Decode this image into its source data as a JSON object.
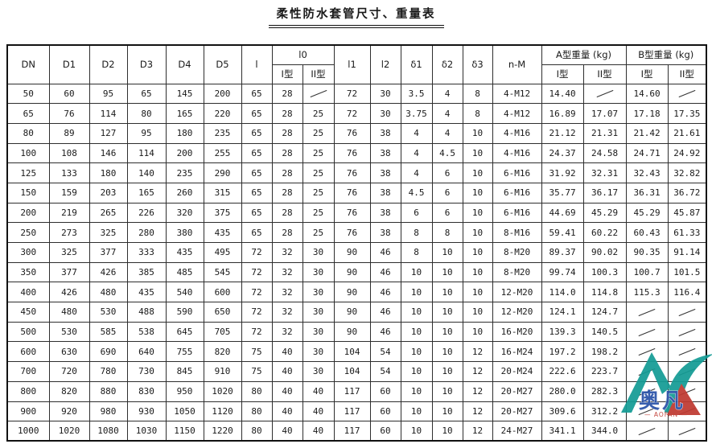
{
  "title": "柔性防水套管尺寸、重量表",
  "watermark": {
    "cn": "奥凡",
    "en": "— AOFAN —",
    "teal": "#149c95",
    "red": "#bf3a31",
    "blue": "#2a52a8"
  },
  "table": {
    "header": {
      "dn": "DN",
      "d1": "D1",
      "d2": "D2",
      "d3": "D3",
      "d4": "D4",
      "d5": "D5",
      "l": "l",
      "l0": "l0",
      "l1": "l1",
      "l2": "l2",
      "delta1": "δ1",
      "delta2": "δ2",
      "delta3": "δ3",
      "nm": "n-M",
      "weight_a": "A型重量 (kg)",
      "weight_b": "B型重量 (kg)",
      "type_i": "I型",
      "type_ii": "II型"
    },
    "rows": [
      [
        "50",
        "60",
        "95",
        "65",
        "145",
        "200",
        "65",
        "28",
        "/",
        "72",
        "30",
        "3.5",
        "4",
        "8",
        "4-M12",
        "14.40",
        "/",
        "14.60",
        "/"
      ],
      [
        "65",
        "76",
        "114",
        "80",
        "165",
        "220",
        "65",
        "28",
        "25",
        "72",
        "30",
        "3.75",
        "4",
        "8",
        "4-M12",
        "16.89",
        "17.07",
        "17.18",
        "17.35"
      ],
      [
        "80",
        "89",
        "127",
        "95",
        "180",
        "235",
        "65",
        "28",
        "25",
        "76",
        "38",
        "4",
        "4",
        "10",
        "4-M16",
        "21.12",
        "21.31",
        "21.42",
        "21.61"
      ],
      [
        "100",
        "108",
        "146",
        "114",
        "200",
        "255",
        "65",
        "28",
        "25",
        "76",
        "38",
        "4",
        "4.5",
        "10",
        "4-M16",
        "24.37",
        "24.58",
        "24.71",
        "24.92"
      ],
      [
        "125",
        "133",
        "180",
        "140",
        "235",
        "290",
        "65",
        "28",
        "25",
        "76",
        "38",
        "4",
        "6",
        "10",
        "6-M16",
        "31.92",
        "32.31",
        "32.43",
        "32.82"
      ],
      [
        "150",
        "159",
        "203",
        "165",
        "260",
        "315",
        "65",
        "28",
        "25",
        "76",
        "38",
        "4.5",
        "6",
        "10",
        "6-M16",
        "35.77",
        "36.17",
        "36.31",
        "36.72"
      ],
      [
        "200",
        "219",
        "265",
        "226",
        "320",
        "375",
        "65",
        "28",
        "25",
        "76",
        "38",
        "6",
        "6",
        "10",
        "6-M16",
        "44.69",
        "45.29",
        "45.29",
        "45.87"
      ],
      [
        "250",
        "273",
        "325",
        "280",
        "380",
        "435",
        "65",
        "28",
        "25",
        "76",
        "38",
        "8",
        "8",
        "10",
        "8-M16",
        "59.41",
        "60.22",
        "60.43",
        "61.33"
      ],
      [
        "300",
        "325",
        "377",
        "333",
        "435",
        "495",
        "72",
        "32",
        "30",
        "90",
        "46",
        "8",
        "10",
        "10",
        "8-M20",
        "89.37",
        "90.02",
        "90.35",
        "91.14"
      ],
      [
        "350",
        "377",
        "426",
        "385",
        "485",
        "545",
        "72",
        "32",
        "30",
        "90",
        "46",
        "10",
        "10",
        "10",
        "8-M20",
        "99.74",
        "100.3",
        "100.7",
        "101.5"
      ],
      [
        "400",
        "426",
        "480",
        "435",
        "540",
        "600",
        "72",
        "32",
        "30",
        "90",
        "46",
        "10",
        "10",
        "10",
        "12-M20",
        "114.0",
        "114.8",
        "115.3",
        "116.4"
      ],
      [
        "450",
        "480",
        "530",
        "488",
        "590",
        "650",
        "72",
        "32",
        "30",
        "90",
        "46",
        "10",
        "10",
        "10",
        "12-M20",
        "124.1",
        "124.7",
        "/",
        "/"
      ],
      [
        "500",
        "530",
        "585",
        "538",
        "645",
        "705",
        "72",
        "32",
        "30",
        "90",
        "46",
        "10",
        "10",
        "10",
        "16-M20",
        "139.3",
        "140.5",
        "/",
        "/"
      ],
      [
        "600",
        "630",
        "690",
        "640",
        "755",
        "820",
        "75",
        "40",
        "30",
        "104",
        "54",
        "10",
        "10",
        "12",
        "16-M24",
        "197.2",
        "198.2",
        "/",
        "/"
      ],
      [
        "700",
        "720",
        "780",
        "730",
        "845",
        "910",
        "75",
        "40",
        "30",
        "104",
        "54",
        "10",
        "10",
        "12",
        "20-M24",
        "222.6",
        "223.7",
        "/",
        "/"
      ],
      [
        "800",
        "820",
        "880",
        "830",
        "950",
        "1020",
        "80",
        "40",
        "40",
        "117",
        "60",
        "10",
        "10",
        "12",
        "20-M27",
        "280.0",
        "282.3",
        "/",
        "/"
      ],
      [
        "900",
        "920",
        "980",
        "930",
        "1050",
        "1120",
        "80",
        "40",
        "40",
        "117",
        "60",
        "10",
        "10",
        "12",
        "20-M27",
        "309.6",
        "312.2",
        "/",
        "/"
      ],
      [
        "1000",
        "1020",
        "1080",
        "1030",
        "1150",
        "1220",
        "80",
        "40",
        "40",
        "117",
        "60",
        "10",
        "10",
        "12",
        "24-M27",
        "341.1",
        "344.0",
        "/",
        "/"
      ]
    ]
  }
}
